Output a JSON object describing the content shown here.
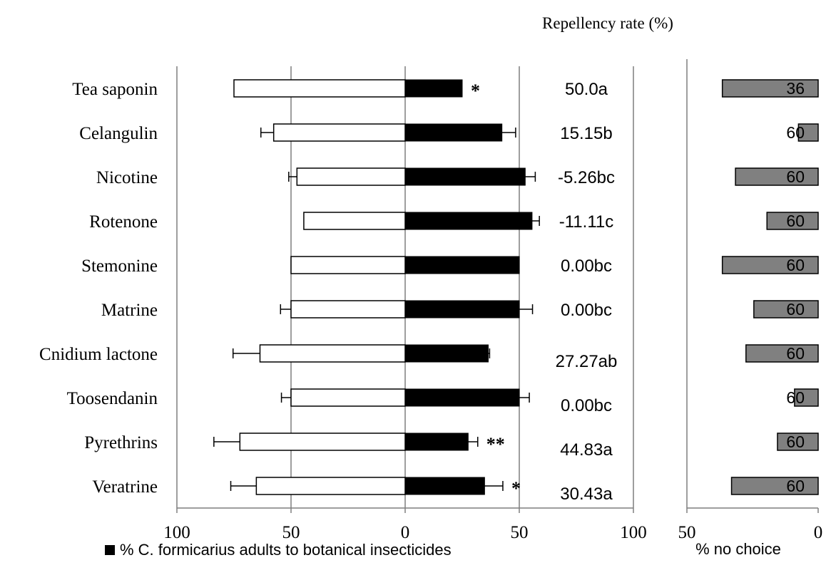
{
  "chart_data": [
    {
      "type": "bar",
      "orientation": "horizontal",
      "title": "Repellency rate (%)",
      "categories": [
        "Tea saponin",
        "Celangulin",
        "Nicotine",
        "Rotenone",
        "Stemonine",
        "Matrine",
        "Cnidium lactone",
        "Toosendanin",
        "Pyrethrins",
        "Veratrine"
      ],
      "series": [
        {
          "color": "#ffffff",
          "direction": "left",
          "values": [
            75,
            57.6,
            47.4,
            44.4,
            50,
            50,
            63.6,
            50,
            72.4,
            65.2
          ],
          "errors": [
            0,
            5.6,
            3.6,
            0,
            0,
            4.6,
            11.8,
            4.2,
            11.4,
            11.2
          ]
        },
        {
          "name": "% C. formicarius adults to botanical insecticides",
          "color": "#000000",
          "direction": "right",
          "values": [
            25,
            42.4,
            52.6,
            55.6,
            50,
            50,
            36.4,
            50,
            27.6,
            34.8
          ],
          "errors": [
            0,
            6,
            4.4,
            3.2,
            0,
            5.8,
            0.6,
            4.4,
            4.2,
            8
          ]
        }
      ],
      "repellency_rates": [
        "50.0a",
        "15.15b",
        "-5.26bc",
        "-11.11c",
        "0.00bc",
        "0.00bc",
        "27.27ab",
        "0.00bc",
        "44.83a",
        "30.43a"
      ],
      "significance": [
        "*",
        "",
        "",
        "",
        "",
        "",
        "",
        "",
        "**",
        "*"
      ],
      "xlim": [
        -100,
        100
      ],
      "x_ticks": [
        "100",
        "50",
        "0",
        "50",
        "100"
      ],
      "grid": true,
      "legend": {
        "position": "bottom-left",
        "label": "% C. formicarius adults to botanical insecticides"
      }
    },
    {
      "type": "bar",
      "orientation": "horizontal",
      "xlabel": "% no choice",
      "categories": [
        "Tea saponin",
        "Celangulin",
        "Nicotine",
        "Rotenone",
        "Stemonine",
        "Matrine",
        "Cnidium lactone",
        "Toosendanin",
        "Pyrethrins",
        "Veratrine"
      ],
      "values": [
        36.5,
        7.5,
        31.5,
        19.5,
        36.5,
        24.5,
        27.5,
        9,
        15.5,
        33
      ],
      "labels": [
        "36",
        "60",
        "60",
        "60",
        "60",
        "60",
        "60",
        "60",
        "60",
        "60"
      ],
      "color": "#808080",
      "xlim": [
        50,
        0
      ],
      "x_ticks": [
        "50",
        "0"
      ]
    }
  ],
  "colors": {
    "axis": "#7f7f7f",
    "grid": "#7f7f7f",
    "black_bar": "#000000",
    "white_bar": "#ffffff",
    "gray_bar": "#808080"
  }
}
